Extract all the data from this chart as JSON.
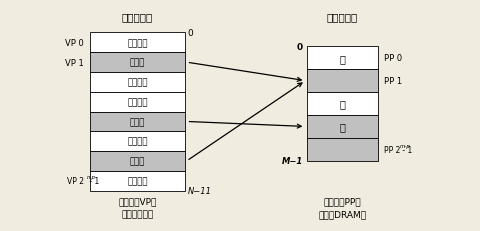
{
  "bg_color": "#f0ede0",
  "title_left": "虚拟存储器",
  "title_right": "物理存储器",
  "vp_rows": [
    "未分配的",
    "缓存的",
    "未缓存的",
    "未分配的",
    "缓存的",
    "未缓存的",
    "缓存的",
    "未缓存的"
  ],
  "vp_colors": [
    "#ffffff",
    "#c0c0c0",
    "#ffffff",
    "#ffffff",
    "#c0c0c0",
    "#ffffff",
    "#c0c0c0",
    "#ffffff"
  ],
  "pp_rows": [
    "空",
    "",
    "空",
    "空",
    ""
  ],
  "pp_labels_show": [
    true,
    false,
    true,
    true,
    false
  ],
  "pp_colors": [
    "#ffffff",
    "#c0c0c0",
    "#ffffff",
    "#c0c0c0",
    "#c0c0c0"
  ],
  "left_labels": [
    "VP 0",
    "VP 1",
    "",
    "",
    "",
    "",
    "",
    "VP 2n-p - 1"
  ],
  "right_labels": [
    "PP 0",
    "PP 1",
    "",
    "",
    "PP 2m-p - 1"
  ],
  "bottom_left_1": "虚拟页（VP）",
  "bottom_left_2": "存储在磁盘上",
  "bottom_right_1": "物理页（PP）",
  "bottom_right_2": "缓存在DRAM中",
  "arrows": [
    {
      "from_vp": 1,
      "to_pp": 1
    },
    {
      "from_vp": 4,
      "to_pp": 3
    },
    {
      "from_vp": 6,
      "to_pp": 1
    }
  ],
  "vp_index_top": "0",
  "vp_index_bot": "N-1",
  "pp_index_top": "0",
  "pp_index_bot": "M-1"
}
